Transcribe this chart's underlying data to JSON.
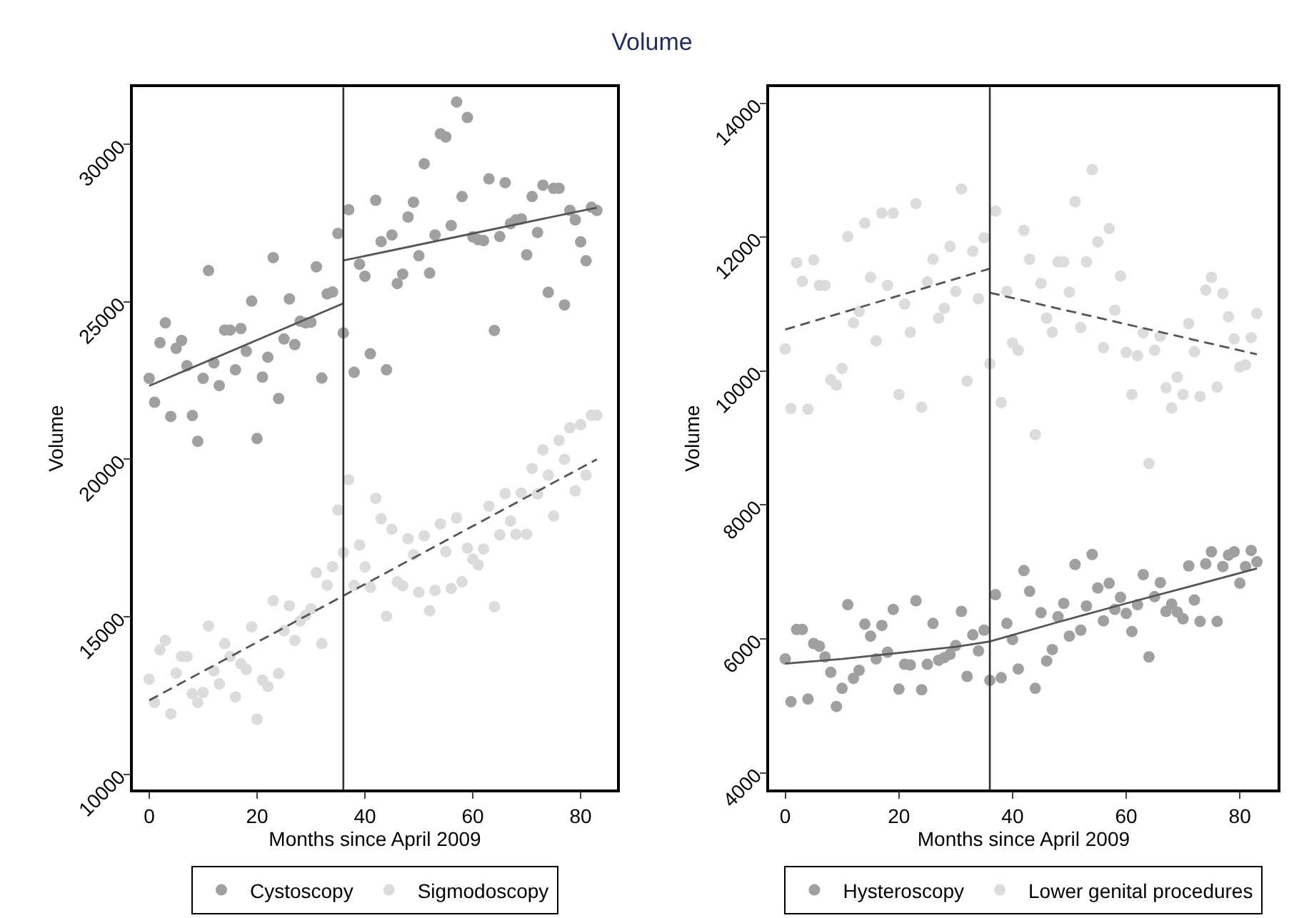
{
  "chart_data": [
    {
      "type": "scatter",
      "title": "Volume",
      "xlabel": "Months since April 2009",
      "ylabel": "Volume",
      "legend": "bottom",
      "xlim": [
        -3,
        86.7
      ],
      "ylim": [
        9520,
        31810
      ],
      "xticks": [
        0,
        20,
        40,
        60,
        80
      ],
      "yticks": [
        10000,
        15000,
        20000,
        25000,
        30000
      ],
      "x": [
        0,
        1,
        2,
        3,
        4,
        5,
        6,
        7,
        8,
        9,
        10,
        11,
        12,
        13,
        14,
        15,
        16,
        17,
        18,
        19,
        20,
        21,
        22,
        23,
        24,
        25,
        26,
        27,
        28,
        29,
        30,
        31,
        32,
        33,
        34,
        35,
        36,
        37,
        38,
        39,
        40,
        41,
        42,
        43,
        44,
        45,
        46,
        47,
        48,
        49,
        50,
        51,
        52,
        53,
        54,
        55,
        56,
        57,
        58,
        59,
        60,
        61,
        62,
        63,
        64,
        65,
        66,
        67,
        68,
        69,
        70,
        71,
        72,
        73,
        74,
        75,
        76,
        77,
        78,
        79,
        80,
        81,
        82,
        83
      ],
      "ref_lines": [
        {
          "axis": "x",
          "value": 36,
          "color": "#333333"
        }
      ],
      "series": [
        {
          "name": "Cystoscopy",
          "color": "#a0a0a0",
          "marker": "circle",
          "values": [
            22570,
            21810,
            23700,
            24330,
            21360,
            23520,
            23770,
            22970,
            21390,
            20570,
            22570,
            25990,
            23060,
            22340,
            24100,
            24100,
            22840,
            24150,
            23430,
            25020,
            20660,
            22610,
            23240,
            26400,
            21930,
            23820,
            25090,
            23640,
            24380,
            24330,
            24350,
            26110,
            22580,
            25250,
            25310,
            27170,
            24010,
            27920,
            22760,
            26190,
            25810,
            23350,
            28220,
            26910,
            22840,
            27120,
            25580,
            25880,
            27690,
            28160,
            26460,
            29380,
            25910,
            27120,
            30330,
            30230,
            27420,
            31340,
            28340,
            30850,
            27060,
            26970,
            26940,
            28900,
            24090,
            27070,
            28780,
            27480,
            27600,
            27630,
            26490,
            28340,
            27200,
            28700,
            25300,
            28600,
            28600,
            24900,
            27900,
            27600,
            26900,
            26300,
            28000,
            27900
          ]
        },
        {
          "name": "Sigmodoscopy",
          "color": "#dcdcdc",
          "marker": "circle",
          "values": [
            13020,
            12280,
            13950,
            14250,
            11920,
            13210,
            13740,
            13740,
            12560,
            12280,
            12600,
            14710,
            13290,
            12870,
            14150,
            13740,
            12460,
            13510,
            13330,
            14680,
            11750,
            12990,
            12790,
            15510,
            13200,
            14560,
            15350,
            14250,
            14870,
            15050,
            15250,
            16400,
            14150,
            16000,
            16590,
            18390,
            17040,
            19350,
            16000,
            17280,
            16580,
            15940,
            18760,
            18110,
            15020,
            17780,
            16110,
            15990,
            17480,
            16970,
            15780,
            17570,
            15190,
            15840,
            17950,
            17070,
            15900,
            18140,
            16110,
            17180,
            16830,
            16650,
            17150,
            18510,
            15320,
            17600,
            18910,
            18040,
            17620,
            18930,
            17620,
            19710,
            18900,
            20300,
            19500,
            18200,
            20600,
            20000,
            21000,
            19000,
            21100,
            19500,
            21400,
            21400
          ]
        },
        {
          "type": "line",
          "line_style": "solid",
          "color": "#555555",
          "x": [
            0,
            36
          ],
          "values": [
            22330,
            24950
          ]
        },
        {
          "type": "line",
          "line_style": "solid",
          "color": "#555555",
          "x": [
            36,
            83
          ],
          "values": [
            26310,
            27990
          ]
        },
        {
          "type": "line",
          "line_style": "dashed",
          "color": "#555555",
          "x": [
            0,
            83
          ],
          "values": [
            12350,
            20000
          ]
        }
      ]
    },
    {
      "type": "scatter",
      "xlabel": "Months since April 2009",
      "ylabel": "Volume",
      "legend": "bottom",
      "xlim": [
        -2.8,
        86.7
      ],
      "ylim": [
        3750,
        14240
      ],
      "xticks": [
        0,
        20,
        40,
        60,
        80
      ],
      "yticks": [
        4000,
        6000,
        8000,
        10000,
        12000,
        14000
      ],
      "x": [
        0,
        1,
        2,
        3,
        4,
        5,
        6,
        7,
        8,
        9,
        10,
        11,
        12,
        13,
        14,
        15,
        16,
        17,
        18,
        19,
        20,
        21,
        22,
        23,
        24,
        25,
        26,
        27,
        28,
        29,
        30,
        31,
        32,
        33,
        34,
        35,
        36,
        37,
        38,
        39,
        40,
        41,
        42,
        43,
        44,
        45,
        46,
        47,
        48,
        49,
        50,
        51,
        52,
        53,
        54,
        55,
        56,
        57,
        58,
        59,
        60,
        61,
        62,
        63,
        64,
        65,
        66,
        67,
        68,
        69,
        70,
        71,
        72,
        73,
        74,
        75,
        76,
        77,
        78,
        79,
        80,
        81,
        82,
        83
      ],
      "ref_lines": [
        {
          "axis": "x",
          "value": 36,
          "color": "#333333"
        }
      ],
      "series": [
        {
          "name": "Hysteroscopy",
          "color": "#a0a0a0",
          "marker": "circle",
          "values": [
            5700,
            5060,
            6140,
            6140,
            5100,
            5930,
            5890,
            5730,
            5500,
            4990,
            5260,
            6510,
            5410,
            5530,
            6220,
            6040,
            5700,
            6200,
            5800,
            6440,
            5250,
            5620,
            5610,
            6570,
            5240,
            5620,
            6230,
            5680,
            5720,
            5770,
            5900,
            6410,
            5440,
            6060,
            5820,
            6130,
            5380,
            6660,
            5420,
            6230,
            5990,
            5550,
            7020,
            6710,
            5260,
            6390,
            5670,
            5840,
            6330,
            6530,
            6040,
            7110,
            6130,
            6490,
            7260,
            6760,
            6270,
            6830,
            6440,
            6620,
            6380,
            6110,
            6510,
            6960,
            5730,
            6630,
            6840,
            6410,
            6520,
            6400,
            6300,
            7090,
            6580,
            6260,
            7120,
            7300,
            6260,
            7080,
            7250,
            7300,
            6830,
            7080,
            7320,
            7150
          ]
        },
        {
          "name": "Lower genital procedures",
          "color": "#dcdcdc",
          "marker": "circle",
          "values": [
            10330,
            9440,
            11620,
            11340,
            9430,
            11660,
            11280,
            11280,
            9870,
            9790,
            10040,
            12010,
            10720,
            10890,
            12210,
            11400,
            10450,
            12360,
            11280,
            12360,
            9650,
            11000,
            10580,
            12500,
            9460,
            11330,
            11670,
            10790,
            10940,
            11860,
            11190,
            12720,
            9850,
            11790,
            11080,
            11990,
            10110,
            12390,
            9530,
            11190,
            10420,
            10310,
            12100,
            11670,
            9050,
            11310,
            10790,
            10580,
            11630,
            11630,
            11180,
            12530,
            10650,
            11630,
            13010,
            11930,
            10350,
            12130,
            10910,
            11420,
            10280,
            9650,
            10230,
            10570,
            8620,
            10310,
            10520,
            9750,
            9450,
            9910,
            9650,
            10710,
            10290,
            9620,
            11210,
            11400,
            9760,
            11160,
            10810,
            10480,
            10060,
            10090,
            10500,
            10860
          ]
        },
        {
          "type": "line",
          "line_style": "solid",
          "color": "#555555",
          "x": [
            0,
            10,
            20,
            30,
            36,
            48,
            60,
            72,
            83
          ],
          "values": [
            5630,
            5700,
            5790,
            5880,
            5960,
            6250,
            6530,
            6800,
            7050
          ]
        },
        {
          "type": "line",
          "line_style": "dashed",
          "color": "#555555",
          "x": [
            0,
            36
          ],
          "values": [
            10620,
            11530
          ]
        },
        {
          "type": "line",
          "line_style": "dashed",
          "color": "#555555",
          "x": [
            36,
            83
          ],
          "values": [
            11170,
            10250
          ]
        }
      ]
    }
  ]
}
